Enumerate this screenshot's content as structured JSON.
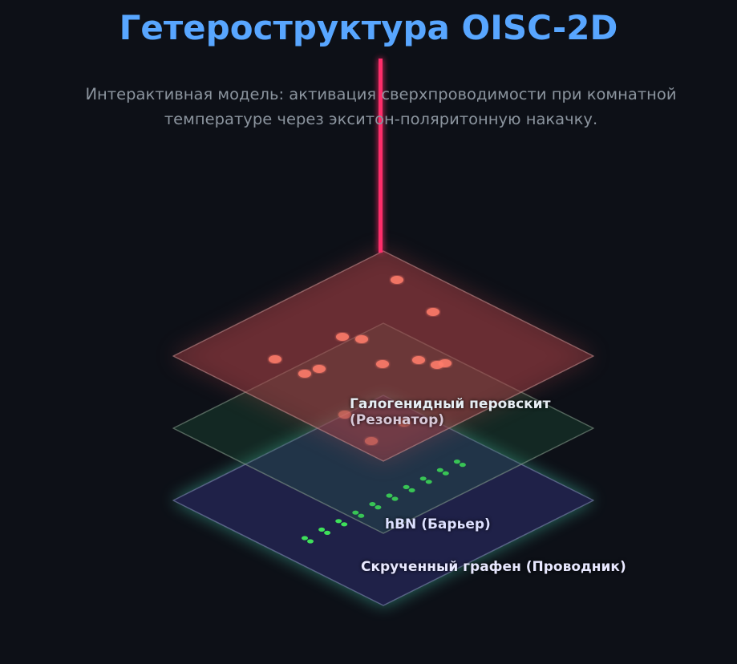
{
  "header": {
    "title": "Гетероструктура OISC-2D",
    "subtitle": "Интерактивная модель: активация сверхпроводимости при комнатной температуре через экситон-поляритонную накачку."
  },
  "layers": [
    {
      "name": "Галогенидный перовскит",
      "role": "(Резонатор)",
      "color": "#ff6b6b"
    },
    {
      "name": "hBN (Барьер)",
      "color": "#3fb950"
    },
    {
      "name": "Скрученный графен (Проводник)",
      "color": "#6e7bff"
    }
  ],
  "colors": {
    "accent": "#58a6ff",
    "laser": "#ff2d6a",
    "dots_red": "#ff7b6b",
    "dots_green": "#3ee05a"
  }
}
